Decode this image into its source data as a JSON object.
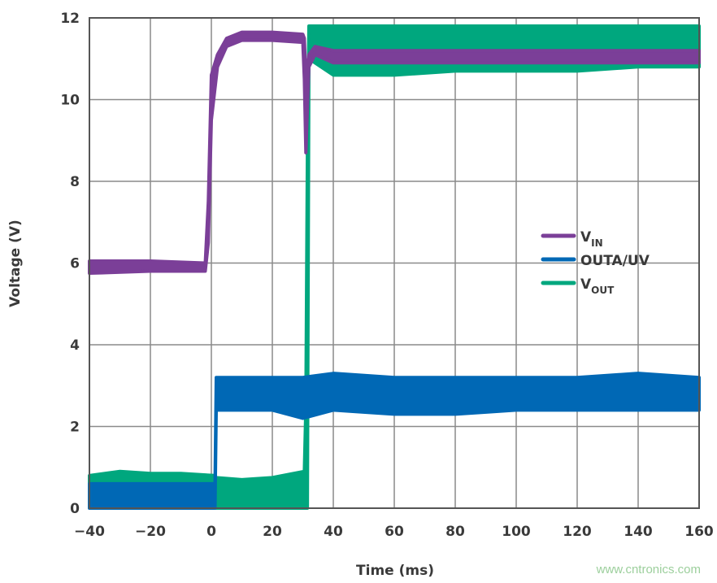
{
  "chart_data": {
    "type": "line",
    "title": "",
    "xlabel": "Time (ms)",
    "ylabel": "Voltage (V)",
    "xlim": [
      -40,
      160
    ],
    "ylim": [
      0,
      12
    ],
    "xticks": [
      -40,
      -20,
      0,
      20,
      40,
      60,
      80,
      100,
      120,
      140,
      160
    ],
    "yticks": [
      0,
      2,
      4,
      6,
      8,
      10,
      12
    ],
    "xtick_labels": [
      "−40",
      "−20",
      "0",
      "20",
      "40",
      "60",
      "80",
      "100",
      "120",
      "140",
      "160"
    ],
    "ytick_labels": [
      "0",
      "2",
      "4",
      "6",
      "8",
      "10",
      "12"
    ],
    "grid": true,
    "legend_position": "right-middle",
    "series": [
      {
        "name": "VOUT",
        "label_main": "V",
        "label_sub": "OUT",
        "color": "#00a77e",
        "band": [
          [
            -40,
            0.4,
            0.8
          ],
          [
            -30,
            0.45,
            0.9
          ],
          [
            -20,
            0.45,
            0.85
          ],
          [
            -10,
            0.4,
            0.85
          ],
          [
            1,
            0.4,
            0.8
          ],
          [
            1.5,
            0,
            0.75
          ],
          [
            10,
            0,
            0.7
          ],
          [
            20,
            0,
            0.75
          ],
          [
            30.5,
            0,
            0.9
          ],
          [
            31,
            0,
            2.5
          ],
          [
            31.5,
            0,
            8.7
          ],
          [
            32,
            11.0,
            11.8
          ],
          [
            40,
            10.6,
            11.8
          ],
          [
            60,
            10.6,
            11.8
          ],
          [
            80,
            10.7,
            11.8
          ],
          [
            100,
            10.7,
            11.8
          ],
          [
            120,
            10.7,
            11.8
          ],
          [
            140,
            10.8,
            11.8
          ],
          [
            160,
            10.8,
            11.8
          ]
        ]
      },
      {
        "name": "OUTA/UV",
        "label_main": "OUTA/UV",
        "label_sub": "",
        "color": "#0068b5",
        "band": [
          [
            -40,
            0,
            0.6
          ],
          [
            -20,
            0,
            0.6
          ],
          [
            0,
            0,
            0.6
          ],
          [
            1.2,
            0,
            0.6
          ],
          [
            1.6,
            2.4,
            3.2
          ],
          [
            20,
            2.4,
            3.2
          ],
          [
            30,
            2.2,
            3.2
          ],
          [
            40,
            2.4,
            3.3
          ],
          [
            60,
            2.3,
            3.2
          ],
          [
            80,
            2.3,
            3.2
          ],
          [
            100,
            2.4,
            3.2
          ],
          [
            120,
            2.4,
            3.2
          ],
          [
            140,
            2.4,
            3.3
          ],
          [
            160,
            2.4,
            3.2
          ]
        ]
      },
      {
        "name": "VIN",
        "label_main": "V",
        "label_sub": "IN",
        "color": "#7b3f98",
        "band": [
          [
            -40,
            5.75,
            6.05
          ],
          [
            -20,
            5.8,
            6.05
          ],
          [
            -2,
            5.8,
            6.0
          ],
          [
            -1,
            6.5,
            7.5
          ],
          [
            0,
            9.5,
            10.6
          ],
          [
            2,
            10.8,
            11.1
          ],
          [
            5,
            11.3,
            11.5
          ],
          [
            10,
            11.45,
            11.65
          ],
          [
            20,
            11.45,
            11.65
          ],
          [
            30,
            11.4,
            11.6
          ],
          [
            30.5,
            10.5,
            11.5
          ],
          [
            31,
            8.7,
            10.5
          ],
          [
            32,
            10.8,
            11.1
          ],
          [
            34,
            11.1,
            11.3
          ],
          [
            40,
            10.9,
            11.2
          ],
          [
            60,
            10.9,
            11.2
          ],
          [
            80,
            10.9,
            11.2
          ],
          [
            100,
            10.9,
            11.2
          ],
          [
            120,
            10.9,
            11.2
          ],
          [
            140,
            10.9,
            11.2
          ],
          [
            160,
            10.9,
            11.2
          ]
        ]
      }
    ]
  },
  "watermark": "www.cntronics.com"
}
